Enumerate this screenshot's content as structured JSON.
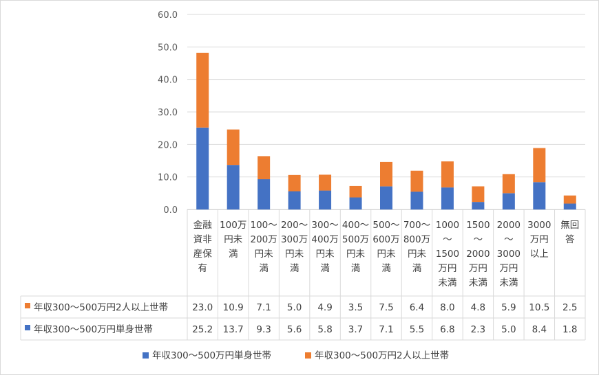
{
  "chart_data": {
    "type": "bar",
    "stacked": true,
    "categories": [
      [
        "金融",
        "資非",
        "産保",
        "有"
      ],
      [
        "100万",
        "円未",
        "満"
      ],
      [
        "100〜",
        "200万",
        "円未",
        "満"
      ],
      [
        "200〜",
        "300万",
        "円未",
        "満"
      ],
      [
        "300〜",
        "400万",
        "円未",
        "満"
      ],
      [
        "400〜",
        "500万",
        "円未",
        "満"
      ],
      [
        "500〜",
        "600万",
        "円未",
        "満"
      ],
      [
        "700〜",
        "800万",
        "円未",
        "満"
      ],
      [
        "1000",
        "〜",
        "1500",
        "万円",
        "未満"
      ],
      [
        "1500",
        "〜",
        "2000",
        "万円",
        "未満"
      ],
      [
        "2000",
        "〜",
        "3000",
        "万円",
        "未満"
      ],
      [
        "3000",
        "万円",
        "以上"
      ],
      [
        "無回",
        "答"
      ]
    ],
    "series": [
      {
        "name": "年収300〜500万円単身世帯",
        "color": "#4472c4",
        "values": [
          25.2,
          13.7,
          9.3,
          5.6,
          5.8,
          3.7,
          7.1,
          5.5,
          6.8,
          2.3,
          5.0,
          8.4,
          1.8
        ],
        "labels": [
          "25.2",
          "13.7",
          "9.3",
          "5.6",
          "5.8",
          "3.7",
          "7.1",
          "5.5",
          "6.8",
          "2.3",
          "5.0",
          "8.4",
          "1.8"
        ]
      },
      {
        "name": "年収300〜500万円2人以上世帯",
        "color": "#ed7d31",
        "values": [
          23.0,
          10.9,
          7.1,
          5.0,
          4.9,
          3.5,
          7.5,
          6.4,
          8.0,
          4.8,
          5.9,
          10.5,
          2.5
        ],
        "labels": [
          "23.0",
          "10.9",
          "7.1",
          "5.0",
          "4.9",
          "3.5",
          "7.5",
          "6.4",
          "8.0",
          "4.8",
          "5.9",
          "10.5",
          "2.5"
        ]
      }
    ],
    "table_row_order": [
      1,
      0
    ],
    "ylim": [
      0,
      60
    ],
    "yticks": [
      "0.0",
      "10.0",
      "20.0",
      "30.0",
      "40.0",
      "50.0",
      "60.0"
    ],
    "grid": true,
    "legend_position": "bottom"
  }
}
